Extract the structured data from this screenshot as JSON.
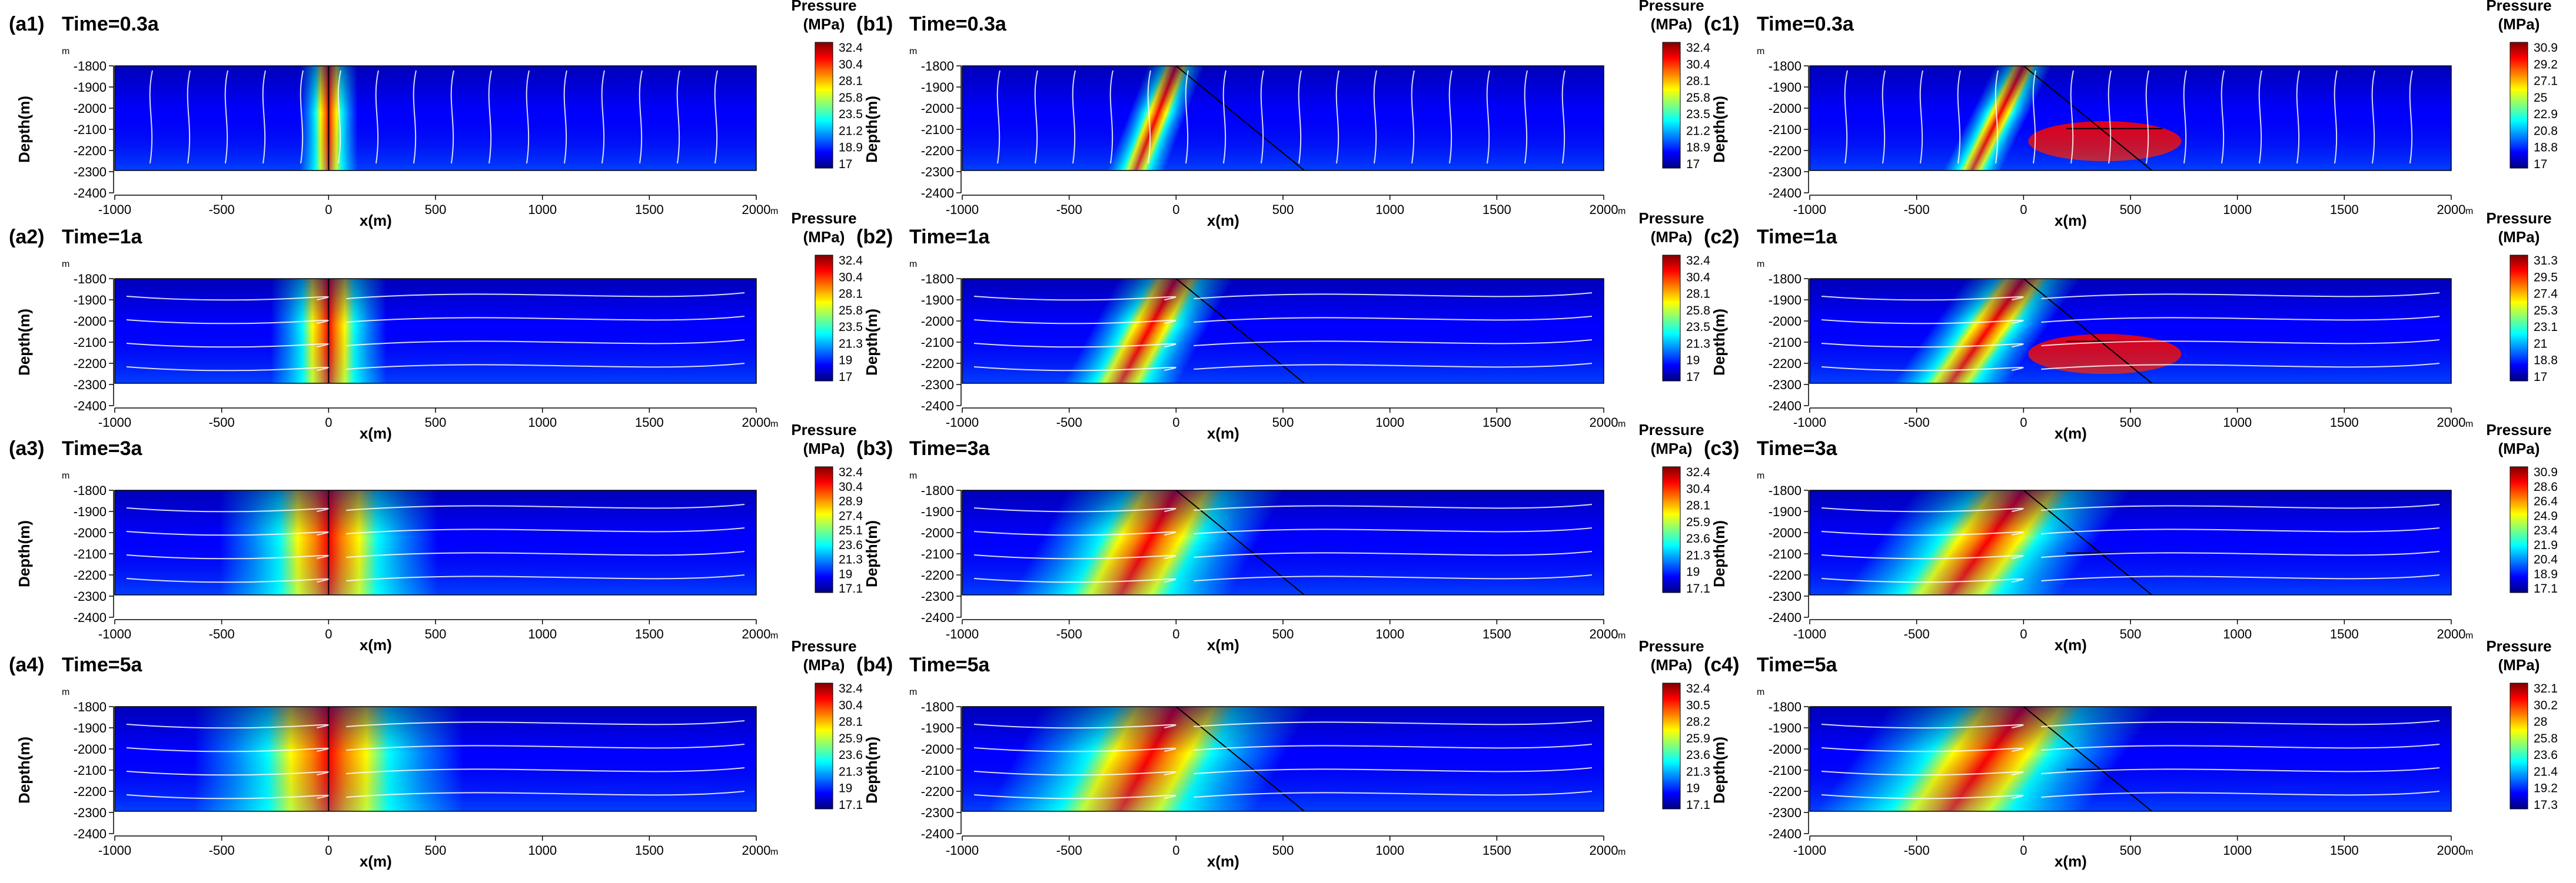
{
  "figure": {
    "xlabel": "x(m)",
    "ylabel": "Depth(m)",
    "x_unit": "m",
    "y_unit": "m",
    "colorbar_title_line1": "Pressure",
    "colorbar_title_line2": "(MPa)",
    "x_ticks": [
      -1000,
      -500,
      0,
      500,
      1000,
      1500,
      2000
    ],
    "y_ticks": [
      -1800,
      -1900,
      -2000,
      -2100,
      -2200,
      -2300,
      -2400
    ],
    "xlim": [
      -1000,
      2000
    ],
    "ylim": [
      -2400,
      -1800
    ],
    "colors": {
      "background": "#ffffff",
      "colormap": [
        "#00007f",
        "#0000ff",
        "#007fff",
        "#00ffff",
        "#7fff7f",
        "#ffff00",
        "#ff7f00",
        "#ff0000",
        "#7f0000"
      ],
      "streamline": "#ffffff",
      "fault": "#000000"
    }
  },
  "chart_data": [
    {
      "id": "a1",
      "panel_label": "(a1)",
      "time_label": "Time=0.3a",
      "type": "heatmap",
      "fault": "vertical",
      "time_years": 0.3,
      "colorbar_ticks": [
        "32.4",
        "30.4",
        "28.1",
        "25.8",
        "23.5",
        "21.2",
        "18.9",
        "17"
      ],
      "pressure_max": 32.4,
      "pressure_min": 17
    },
    {
      "id": "b1",
      "panel_label": "(b1)",
      "time_label": "Time=0.3a",
      "type": "heatmap",
      "fault": "inclined",
      "time_years": 0.3,
      "colorbar_ticks": [
        "32.4",
        "30.4",
        "28.1",
        "25.8",
        "23.5",
        "21.2",
        "18.9",
        "17"
      ],
      "pressure_max": 32.4,
      "pressure_min": 17
    },
    {
      "id": "c1",
      "panel_label": "(c1)",
      "time_label": "Time=0.3a",
      "type": "heatmap",
      "fault": "inclined-branch",
      "time_years": 0.3,
      "colorbar_ticks": [
        "30.9",
        "29.2",
        "27.1",
        "25",
        "22.9",
        "20.8",
        "18.8",
        "17"
      ],
      "pressure_max": 30.9,
      "pressure_min": 17
    },
    {
      "id": "a2",
      "panel_label": "(a2)",
      "time_label": "Time=1a",
      "type": "heatmap",
      "fault": "vertical",
      "time_years": 1,
      "colorbar_ticks": [
        "32.4",
        "30.4",
        "28.1",
        "25.8",
        "23.5",
        "21.3",
        "19",
        "17"
      ],
      "pressure_max": 32.4,
      "pressure_min": 17
    },
    {
      "id": "b2",
      "panel_label": "(b2)",
      "time_label": "Time=1a",
      "type": "heatmap",
      "fault": "inclined",
      "time_years": 1,
      "colorbar_ticks": [
        "32.4",
        "30.4",
        "28.1",
        "25.8",
        "23.5",
        "21.3",
        "19",
        "17"
      ],
      "pressure_max": 32.4,
      "pressure_min": 17
    },
    {
      "id": "c2",
      "panel_label": "(c2)",
      "time_label": "Time=1a",
      "type": "heatmap",
      "fault": "inclined-branch",
      "time_years": 1,
      "colorbar_ticks": [
        "31.3",
        "29.5",
        "27.4",
        "25.3",
        "23.1",
        "21",
        "18.8",
        "17"
      ],
      "pressure_max": 31.3,
      "pressure_min": 17
    },
    {
      "id": "a3",
      "panel_label": "(a3)",
      "time_label": "Time=3a",
      "type": "heatmap",
      "fault": "vertical",
      "time_years": 3,
      "colorbar_ticks": [
        "32.4",
        "30.4",
        "28.9",
        "27.4",
        "25.1",
        "23.6",
        "21.3",
        "19",
        "17.1"
      ],
      "pressure_max": 32.4,
      "pressure_min": 17.1
    },
    {
      "id": "b3",
      "panel_label": "(b3)",
      "time_label": "Time=3a",
      "type": "heatmap",
      "fault": "inclined",
      "time_years": 3,
      "colorbar_ticks": [
        "32.4",
        "30.4",
        "28.1",
        "25.9",
        "23.6",
        "21.3",
        "19",
        "17.1"
      ],
      "pressure_max": 32.4,
      "pressure_min": 17.1
    },
    {
      "id": "c3",
      "panel_label": "(c3)",
      "time_label": "Time=3a",
      "type": "heatmap",
      "fault": "inclined-branch",
      "time_years": 3,
      "colorbar_ticks": [
        "30.9",
        "28.6",
        "26.4",
        "24.9",
        "23.4",
        "21.9",
        "20.4",
        "18.9",
        "17.1"
      ],
      "pressure_max": 30.9,
      "pressure_min": 17.1
    },
    {
      "id": "a4",
      "panel_label": "(a4)",
      "time_label": "Time=5a",
      "type": "heatmap",
      "fault": "vertical",
      "time_years": 5,
      "colorbar_ticks": [
        "32.4",
        "30.4",
        "28.1",
        "25.9",
        "23.6",
        "21.3",
        "19",
        "17.1"
      ],
      "pressure_max": 32.4,
      "pressure_min": 17.1
    },
    {
      "id": "b4",
      "panel_label": "(b4)",
      "time_label": "Time=5a",
      "type": "heatmap",
      "fault": "inclined",
      "time_years": 5,
      "colorbar_ticks": [
        "32.4",
        "30.5",
        "28.2",
        "25.9",
        "23.6",
        "21.3",
        "19",
        "17.1"
      ],
      "pressure_max": 32.4,
      "pressure_min": 17.1
    },
    {
      "id": "c4",
      "panel_label": "(c4)",
      "time_label": "Time=5a",
      "type": "heatmap",
      "fault": "inclined-branch",
      "time_years": 5,
      "colorbar_ticks": [
        "32.1",
        "30.2",
        "28",
        "25.8",
        "23.6",
        "21.4",
        "19.2",
        "17.3"
      ],
      "pressure_max": 32.1,
      "pressure_min": 17.3
    }
  ]
}
